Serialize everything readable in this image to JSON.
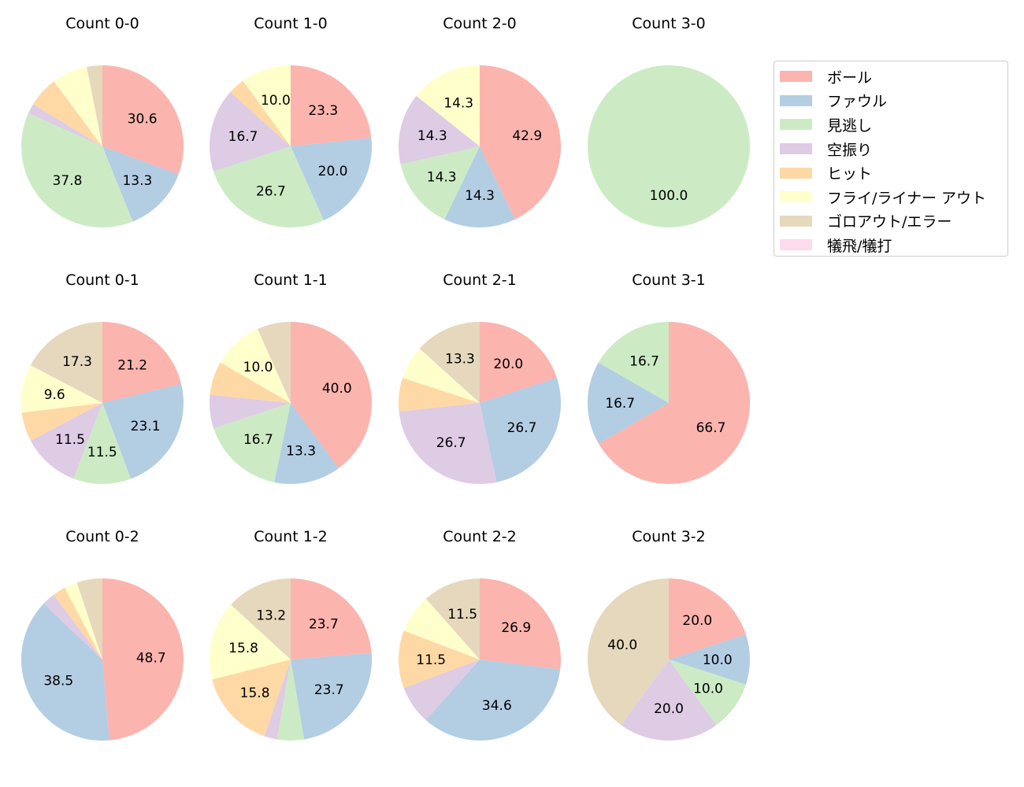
{
  "chart_data": [
    {
      "type": "pie",
      "title": "Count 0-0",
      "values": [
        30.6,
        13.3,
        37.8,
        2.0,
        6.1,
        7.1,
        3.1,
        0
      ]
    },
    {
      "type": "pie",
      "title": "Count 1-0",
      "values": [
        23.3,
        20.0,
        26.7,
        16.7,
        3.3,
        10.0,
        0,
        0
      ]
    },
    {
      "type": "pie",
      "title": "Count 2-0",
      "values": [
        42.9,
        14.3,
        14.3,
        14.3,
        0,
        14.3,
        0,
        0
      ]
    },
    {
      "type": "pie",
      "title": "Count 3-0",
      "values": [
        0,
        0,
        100.0,
        0,
        0,
        0,
        0,
        0
      ]
    },
    {
      "type": "pie",
      "title": "Count 0-1",
      "values": [
        21.2,
        23.1,
        11.5,
        11.5,
        5.8,
        9.6,
        17.3,
        0
      ]
    },
    {
      "type": "pie",
      "title": "Count 1-1",
      "values": [
        40.0,
        13.3,
        16.7,
        6.7,
        6.7,
        10.0,
        6.7,
        0
      ]
    },
    {
      "type": "pie",
      "title": "Count 2-1",
      "values": [
        20.0,
        26.7,
        0,
        26.7,
        6.7,
        6.7,
        13.3,
        0
      ]
    },
    {
      "type": "pie",
      "title": "Count 3-1",
      "values": [
        66.7,
        16.7,
        16.7,
        0,
        0,
        0,
        0,
        0
      ]
    },
    {
      "type": "pie",
      "title": "Count 0-2",
      "values": [
        48.7,
        38.5,
        0,
        2.6,
        2.6,
        2.6,
        5.1,
        0
      ]
    },
    {
      "type": "pie",
      "title": "Count 1-2",
      "values": [
        23.7,
        23.7,
        5.3,
        2.6,
        15.8,
        15.8,
        13.2,
        0
      ]
    },
    {
      "type": "pie",
      "title": "Count 2-2",
      "values": [
        26.9,
        34.6,
        0,
        7.7,
        11.5,
        7.7,
        11.5,
        0
      ]
    },
    {
      "type": "pie",
      "title": "Count 3-2",
      "values": [
        20.0,
        10.0,
        10.0,
        20.0,
        0,
        0,
        40.0,
        0
      ]
    }
  ],
  "legend": {
    "placement": "right",
    "labels": [
      "ボール",
      "ファウル",
      "見逃し",
      "空振り",
      "ヒット",
      "フライ/ライナー アウト",
      "ゴロアウト/エラー",
      "犠飛/犠打"
    ],
    "colors": [
      "#fbb4ae",
      "#b3cde3",
      "#ccebc5",
      "#decbe4",
      "#fed9a6",
      "#ffffcc",
      "#e5d8bd",
      "#fddaec"
    ]
  },
  "label_format": "%.1f"
}
